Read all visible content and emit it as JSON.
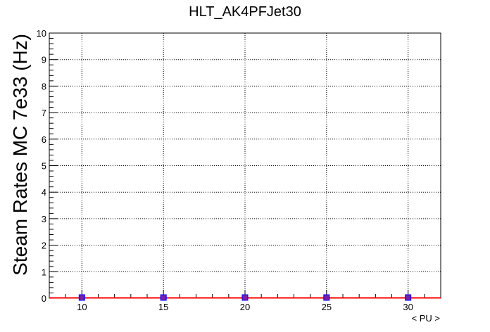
{
  "chart_data": {
    "type": "scatter",
    "title": "HLT_AK4PFJet30",
    "xlabel": "< PU >",
    "ylabel": "Steam Rates MC 7e33 (Hz)",
    "xlim": [
      8,
      32
    ],
    "ylim": [
      0,
      10
    ],
    "x_ticks": [
      "10",
      "15",
      "20",
      "25",
      "30"
    ],
    "y_ticks": [
      "0",
      "1",
      "2",
      "3",
      "4",
      "5",
      "6",
      "7",
      "8",
      "9",
      "10"
    ],
    "grid": true,
    "series": [
      {
        "color": "#0000ff",
        "marker_color": "#7b1fa2",
        "x": [
          10,
          15,
          20,
          25,
          30
        ],
        "values": [
          0,
          0,
          0,
          0,
          0
        ]
      }
    ],
    "fit_line": {
      "color": "#ff0000",
      "x": [
        8,
        32
      ],
      "values": [
        0,
        0
      ]
    }
  }
}
